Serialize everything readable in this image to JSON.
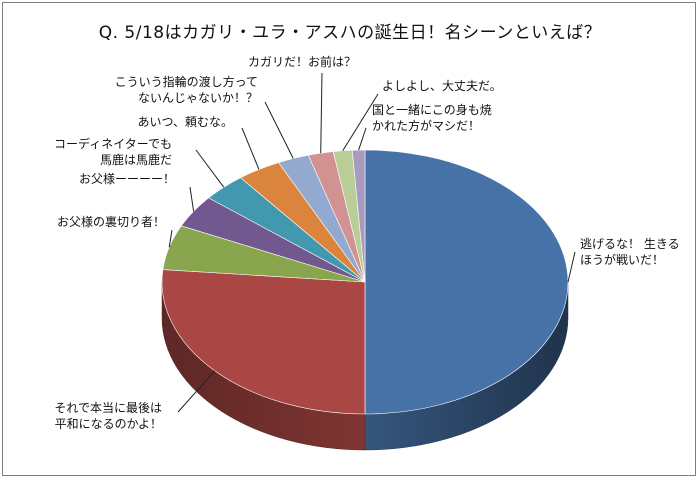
{
  "chart_data": {
    "type": "pie",
    "title": "Q.  5/18はカガリ・ユラ・アスハの誕生日！名シーンといえば？",
    "slices": [
      {
        "label": "逃げるな！ 生きる\nほうが戦いだ！",
        "value": 50.0,
        "color": "#4672a8"
      },
      {
        "label": "それで本当に最後は\n平和になるのかよ！",
        "value": 26.5,
        "color": "#aa4643"
      },
      {
        "label": "お父様の裏切り者！",
        "value": 5.5,
        "color": "#89a54e"
      },
      {
        "label": "お父様ーーーー！",
        "value": 4.0,
        "color": "#71588f"
      },
      {
        "label": "コーディネイターでも\n馬鹿は馬鹿だ",
        "value": 3.5,
        "color": "#4198af"
      },
      {
        "label": "あいつ、頼むな。",
        "value": 3.5,
        "color": "#db843d"
      },
      {
        "label": "こういう指輪の渡し方って\nないんじゃないか！？",
        "value": 2.5,
        "color": "#93a9cf"
      },
      {
        "label": "カガリだ！お前は？",
        "value": 2.0,
        "color": "#d19392"
      },
      {
        "label": "よしよし、大丈夫だ。",
        "value": 1.5,
        "color": "#b9cd96"
      },
      {
        "label": "国と一緒にこの身も焼\nかれた方がマシだ！",
        "value": 1.0,
        "color": "#a99bbd"
      }
    ]
  }
}
